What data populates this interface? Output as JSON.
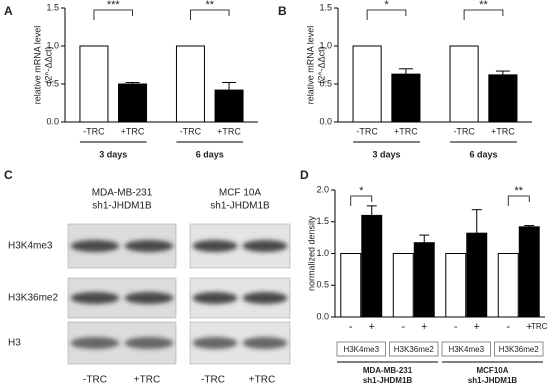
{
  "chart_data": [
    {
      "type": "bar",
      "panel": "A",
      "ylabel": [
        "relative mRNA level",
        "(2^-ΔΔct)"
      ],
      "categories": [
        "-TRC",
        "+TRC",
        "-TRC",
        "+TRC"
      ],
      "groups": [
        "3 days",
        "6 days"
      ],
      "values": [
        1,
        0.5,
        1,
        0.42
      ],
      "errors": [
        null,
        0.02,
        null,
        0.1
      ],
      "colors": [
        "#ffffff",
        "#000000",
        "#ffffff",
        "#000000"
      ],
      "significance": [
        "***",
        "**"
      ],
      "ylim": [
        0,
        1.5
      ],
      "yticks": [
        {
          "value": 0,
          "label": "0.0"
        },
        {
          "value": 0.5,
          "label": "0.5"
        },
        {
          "value": 1,
          "label": "1.0"
        },
        {
          "value": 1.5,
          "label": "1.5"
        }
      ]
    },
    {
      "type": "bar",
      "panel": "B",
      "ylabel": [
        "relative mRNA level",
        "(2^-ΔΔct)"
      ],
      "categories": [
        "-TRC",
        "+TRC",
        "-TRC",
        "+TRC"
      ],
      "groups": [
        "3 days",
        "6 days"
      ],
      "values": [
        1,
        0.63,
        1,
        0.62
      ],
      "errors": [
        null,
        0.07,
        null,
        0.05
      ],
      "colors": [
        "#ffffff",
        "#000000",
        "#ffffff",
        "#000000"
      ],
      "significance": [
        "*",
        "**"
      ],
      "ylim": [
        0,
        1.5
      ],
      "yticks": [
        {
          "value": 0,
          "label": "0.0"
        },
        {
          "value": 0.5,
          "label": "0.5"
        },
        {
          "value": 1,
          "label": "1.0"
        },
        {
          "value": 1.5,
          "label": "1.5"
        }
      ]
    },
    {
      "type": "bar",
      "panel": "D",
      "ylabel": [
        "normalized density"
      ],
      "categories": [
        "-",
        "+",
        "-",
        "+",
        "-",
        "+",
        "-",
        "+"
      ],
      "groups": [
        "H3K4me3",
        "H3K36me2",
        "H3K4me3",
        "H3K36me2"
      ],
      "supergroups": [
        [
          "MDA-MB-231",
          "sh1-JHDM1B"
        ],
        [
          "MCF10A",
          "sh1-JHDM1B"
        ]
      ],
      "treatment_label": "TRC",
      "values": [
        1,
        1.6,
        1,
        1.17,
        1,
        1.32,
        1,
        1.42
      ],
      "errors": [
        null,
        0.15,
        null,
        0.12,
        null,
        0.37,
        null,
        0.02
      ],
      "colors": [
        "#ffffff",
        "#000000",
        "#ffffff",
        "#000000",
        "#ffffff",
        "#000000",
        "#ffffff",
        "#000000"
      ],
      "significance": [
        "*",
        null,
        null,
        "**"
      ],
      "ylim": [
        0,
        2
      ],
      "yticks": [
        {
          "value": 0,
          "label": "0.0"
        },
        {
          "value": 0.5,
          "label": "0.5"
        },
        {
          "value": 1,
          "label": "1.0"
        },
        {
          "value": 1.5,
          "label": "1.5"
        },
        {
          "value": 2,
          "label": "2.0"
        }
      ]
    }
  ],
  "blot_panel": {
    "panel": "C",
    "columns": [
      [
        "MDA-MB-231",
        "sh1-JHDM1B"
      ],
      [
        "MCF 10A",
        "sh1-JHDM1B"
      ]
    ],
    "rows": [
      "H3K4me3",
      "H3K36me2",
      "H3"
    ],
    "lanes": [
      "-TRC",
      "+TRC",
      "-TRC",
      "+TRC"
    ]
  }
}
